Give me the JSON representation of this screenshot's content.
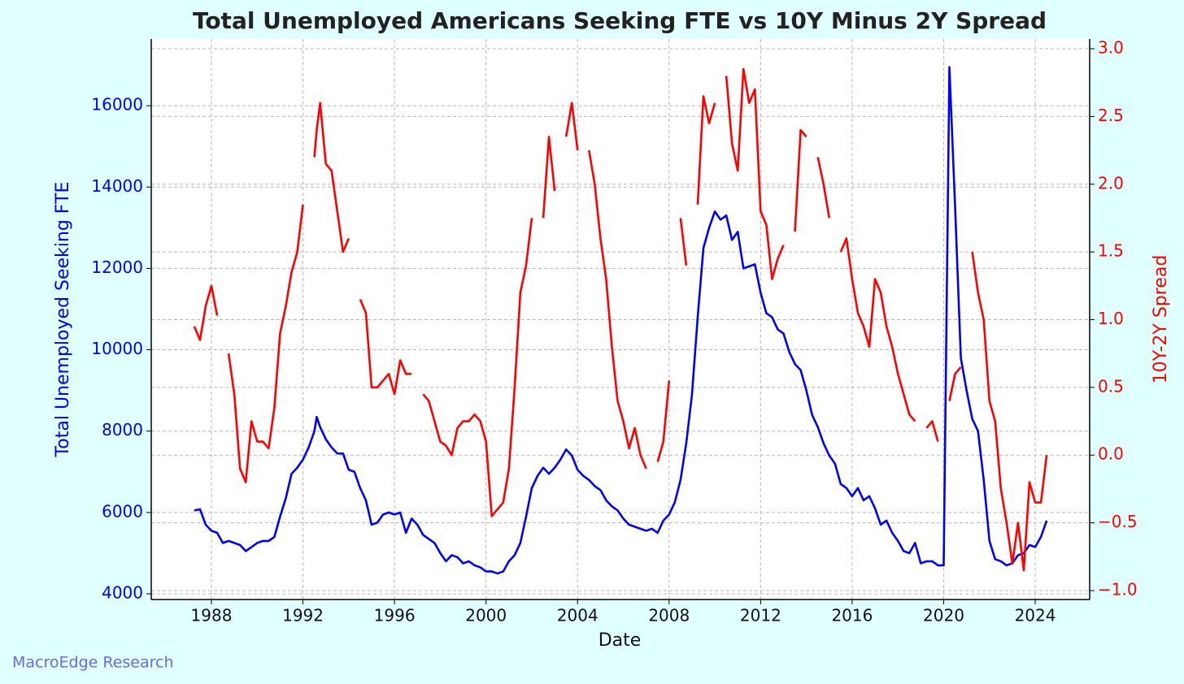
{
  "chart_data": {
    "type": "line",
    "title": "Total Unemployed Americans Seeking FTE vs 10Y Minus 2Y Spread",
    "x_label": "Date",
    "y_label": "Total Unemployed Seeking FTE",
    "y2_label": "10Y-2Y Spread",
    "watermark": "MacroEdge Research",
    "grid": true,
    "xlim": [
      1985.37,
      2026.38
    ],
    "xticks": [
      1988,
      1992,
      1996,
      2000,
      2004,
      2008,
      2012,
      2016,
      2020,
      2024
    ],
    "ylim": [
      3860,
      17640
    ],
    "yticks": [
      4000,
      6000,
      8000,
      10000,
      12000,
      14000,
      16000
    ],
    "y2lim": [
      -1.066,
      3.072
    ],
    "y2ticks": [
      {
        "value": -1.0,
        "label": "−1.0"
      },
      {
        "value": -0.5,
        "label": "−0.5"
      },
      {
        "value": 0.0,
        "label": "0.0"
      },
      {
        "value": 0.5,
        "label": "0.5"
      },
      {
        "value": 1.0,
        "label": "1.0"
      },
      {
        "value": 1.5,
        "label": "1.5"
      },
      {
        "value": 2.0,
        "label": "2.0"
      },
      {
        "value": 2.5,
        "label": "2.5"
      },
      {
        "value": 3.0,
        "label": "3.0"
      }
    ],
    "x": [
      1987.25,
      1987.5,
      1987.75,
      1988,
      1988.25,
      1988.5,
      1988.75,
      1989,
      1989.25,
      1989.5,
      1989.75,
      1990,
      1990.25,
      1990.5,
      1990.75,
      1991,
      1991.25,
      1991.5,
      1991.75,
      1992,
      1992.25,
      1992.5,
      1992.6,
      1992.75,
      1993,
      1993.25,
      1993.5,
      1993.75,
      1994,
      1994.25,
      1994.5,
      1994.75,
      1995,
      1995.25,
      1995.5,
      1995.75,
      1996,
      1996.25,
      1996.5,
      1996.75,
      1997,
      1997.25,
      1997.5,
      1997.75,
      1998,
      1998.25,
      1998.5,
      1998.75,
      1999,
      1999.25,
      1999.5,
      1999.75,
      2000,
      2000.25,
      2000.5,
      2000.75,
      2001,
      2001.25,
      2001.5,
      2001.75,
      2002,
      2002.25,
      2002.5,
      2002.75,
      2003,
      2003.25,
      2003.5,
      2003.75,
      2004,
      2004.25,
      2004.5,
      2004.75,
      2005,
      2005.25,
      2005.5,
      2005.75,
      2006,
      2006.25,
      2006.5,
      2006.75,
      2007,
      2007.25,
      2007.5,
      2007.75,
      2008,
      2008.25,
      2008.5,
      2008.75,
      2009,
      2009.25,
      2009.5,
      2009.75,
      2010,
      2010.25,
      2010.5,
      2010.75,
      2011,
      2011.25,
      2011.5,
      2011.75,
      2012,
      2012.25,
      2012.5,
      2012.75,
      2013,
      2013.25,
      2013.5,
      2013.75,
      2014,
      2014.25,
      2014.5,
      2014.75,
      2015,
      2015.25,
      2015.5,
      2015.75,
      2016,
      2016.25,
      2016.5,
      2016.75,
      2017,
      2017.25,
      2017.5,
      2017.75,
      2018,
      2018.25,
      2018.5,
      2018.75,
      2019,
      2019.25,
      2019.5,
      2019.75,
      2020,
      2020.25,
      2020.5,
      2020.75,
      2021,
      2021.25,
      2021.5,
      2021.75,
      2022,
      2022.25,
      2022.5,
      2022.75,
      2023,
      2023.25,
      2023.5,
      2023.75,
      2024,
      2024.25,
      2024.5
    ],
    "series": [
      {
        "name": "Total Unemployed Seeking FTE",
        "color": "#0000ff",
        "axis": "y",
        "values": [
          6050,
          6080,
          5700,
          5550,
          5500,
          5250,
          5300,
          5250,
          5200,
          5050,
          5150,
          5250,
          5300,
          5300,
          5400,
          5900,
          6350,
          6950,
          7100,
          7300,
          7600,
          8000,
          8350,
          8100,
          7800,
          7600,
          7450,
          7450,
          7050,
          7000,
          6600,
          6300,
          5700,
          5750,
          5950,
          6000,
          5950,
          6000,
          5500,
          5850,
          5700,
          5450,
          5350,
          5250,
          5000,
          4800,
          4950,
          4900,
          4750,
          4800,
          4700,
          4650,
          4550,
          4550,
          4500,
          4550,
          4800,
          4950,
          5250,
          5900,
          6600,
          6900,
          7100,
          6950,
          7100,
          7300,
          7550,
          7400,
          7050,
          6900,
          6800,
          6650,
          6550,
          6300,
          6150,
          6050,
          5850,
          5700,
          5650,
          5600,
          5550,
          5600,
          5500,
          5800,
          5950,
          6250,
          6800,
          7700,
          8900,
          10800,
          12500,
          13000,
          13400,
          13200,
          13300,
          12700,
          12900,
          12000,
          12050,
          12100,
          11400,
          10900,
          10800,
          10500,
          10400,
          9950,
          9650,
          9500,
          9000,
          8400,
          8100,
          7700,
          7400,
          7200,
          6700,
          6600,
          6400,
          6600,
          6300,
          6400,
          6100,
          5700,
          5800,
          5500,
          5300,
          5050,
          5000,
          5250,
          4750,
          4800,
          4800,
          4700,
          4700,
          16950,
          13500,
          9800,
          9000,
          8300,
          8000,
          6800,
          5300,
          4850,
          4800,
          4700,
          4750,
          4950,
          5000,
          5200,
          5150,
          5400,
          5800
        ]
      },
      {
        "name": "10Y-2Y Spread",
        "color": "#ff0000",
        "axis": "y2",
        "values": [
          0.95,
          0.85,
          1.1,
          1.25,
          1.03,
          null,
          0.75,
          0.45,
          -0.1,
          -0.2,
          0.25,
          0.1,
          0.1,
          0.05,
          0.35,
          0.9,
          1.1,
          1.35,
          1.5,
          1.85,
          null,
          2.2,
          2.4,
          2.6,
          2.15,
          2.1,
          1.8,
          1.5,
          1.6,
          null,
          1.15,
          1.05,
          0.5,
          0.5,
          0.55,
          0.6,
          0.45,
          0.7,
          0.6,
          0.6,
          null,
          0.45,
          0.4,
          0.25,
          0.1,
          0.07,
          0.0,
          0.2,
          0.25,
          0.25,
          0.3,
          0.25,
          0.1,
          -0.45,
          -0.4,
          -0.35,
          -0.1,
          0.5,
          1.2,
          1.4,
          1.75,
          null,
          1.75,
          2.35,
          1.95,
          null,
          2.35,
          2.6,
          2.25,
          null,
          2.25,
          2.0,
          1.6,
          1.3,
          0.8,
          0.4,
          0.25,
          0.05,
          0.2,
          0.0,
          -0.1,
          null,
          -0.05,
          0.1,
          0.55,
          null,
          1.75,
          1.4,
          null,
          1.85,
          2.65,
          2.45,
          2.6,
          null,
          2.8,
          2.3,
          2.1,
          2.85,
          2.6,
          2.7,
          1.8,
          1.7,
          1.3,
          1.45,
          1.55,
          null,
          1.65,
          2.4,
          2.35,
          null,
          2.2,
          2.0,
          1.75,
          null,
          1.5,
          1.6,
          1.3,
          1.05,
          0.95,
          0.8,
          1.3,
          1.2,
          0.95,
          0.8,
          0.6,
          0.45,
          0.3,
          0.25,
          null,
          0.2,
          0.25,
          0.1,
          null,
          0.4,
          0.6,
          0.65,
          null,
          1.5,
          1.2,
          1.0,
          0.4,
          0.25,
          -0.25,
          -0.5,
          -0.8,
          -0.5,
          -0.85,
          -0.2,
          -0.35,
          -0.35,
          0.0
        ]
      }
    ]
  }
}
